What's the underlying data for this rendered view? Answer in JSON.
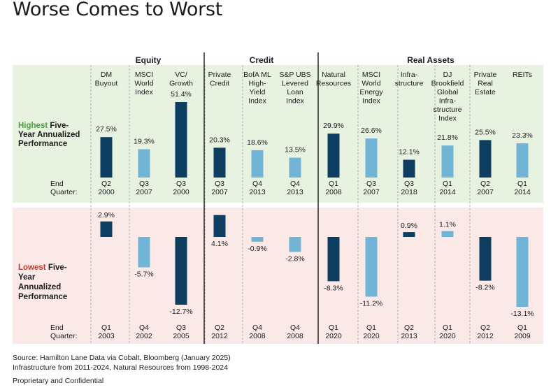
{
  "title": "Worse Comes to Worst",
  "groups": [
    "Equity",
    "Credit",
    "Real Assets"
  ],
  "strategies": [
    [
      "DM",
      "Buyout"
    ],
    [
      "MSCI",
      "World",
      "Index"
    ],
    [
      "VC/",
      "Growth"
    ],
    [
      "Private",
      "Credit"
    ],
    [
      "BofA ML",
      "High-",
      "Yield",
      "Index"
    ],
    [
      "S&P UBS",
      "Levered",
      "Loan",
      "Index"
    ],
    [
      "Natural",
      "Resources"
    ],
    [
      "MSCI",
      "World",
      "Energy",
      "Index"
    ],
    [
      "Infra-",
      "structure"
    ],
    [
      "DJ",
      "Brookfield",
      "Global",
      "Infra-",
      "structure",
      "Index"
    ],
    [
      "Private",
      "Real",
      "Estate"
    ],
    [
      "REITs"
    ]
  ],
  "highest_label": {
    "colored": "Highest",
    "rest": [
      " Five-",
      "Year Annualized",
      "Performance"
    ]
  },
  "lowest_label": {
    "colored": "Lowest",
    "rest": [
      " Five-",
      "Year",
      "Annualized",
      "Performance"
    ]
  },
  "end_quarter_label": [
    "End",
    "Quarter:"
  ],
  "colors": {
    "dark_bar": "#0d3d5f",
    "light_bar": "#72b4d6",
    "top_panel": "#e8f2e1",
    "bottom_panel": "#fbe9e8",
    "highest_word": "#4a9f3a",
    "lowest_word": "#c0392b"
  },
  "chart_data": {
    "type": "bar",
    "categories": [
      "DM Buyout",
      "MSCI World Index",
      "VC/ Growth",
      "Private Credit",
      "BofA ML High-Yield Index",
      "S&P UBS Levered Loan Index",
      "Natural Resources",
      "MSCI World Energy Index",
      "Infra-structure",
      "DJ Brookfield Global Infra-structure Index",
      "Private Real Estate",
      "REITs"
    ],
    "bar_shade": [
      "dark",
      "light",
      "dark",
      "dark",
      "light",
      "light",
      "dark",
      "light",
      "dark",
      "light",
      "dark",
      "light"
    ],
    "highest": {
      "values": [
        27.5,
        19.3,
        51.4,
        20.3,
        18.6,
        13.5,
        29.9,
        26.6,
        12.1,
        21.8,
        25.5,
        23.3
      ],
      "labels": [
        "27.5%",
        "19.3%",
        "51.4%",
        "20.3%",
        "18.6%",
        "13.5%",
        "29.9%",
        "26.6%",
        "12.1%",
        "21.8%",
        "25.5%",
        "23.3%"
      ],
      "quarters": [
        [
          "Q2",
          "2000"
        ],
        [
          "Q3",
          "2007"
        ],
        [
          "Q3",
          "2000"
        ],
        [
          "Q3",
          "2007"
        ],
        [
          "Q4",
          "2013"
        ],
        [
          "Q4",
          "2013"
        ],
        [
          "Q1",
          "2008"
        ],
        [
          "Q3",
          "2007"
        ],
        [
          "Q3",
          "2018"
        ],
        [
          "Q1",
          "2014"
        ],
        [
          "Q2",
          "2007"
        ],
        [
          "Q1",
          "2014"
        ]
      ]
    },
    "lowest": {
      "values": [
        2.9,
        -5.7,
        -12.7,
        4.1,
        -0.9,
        -2.8,
        -8.3,
        -11.2,
        0.9,
        1.1,
        -8.2,
        -13.1
      ],
      "labels": [
        "2.9%",
        "-5.7%",
        "-12.7%",
        "4.1%",
        "-0.9%",
        "-2.8%",
        "-8.3%",
        "-11.2%",
        "0.9%",
        "1.1%",
        "-8.2%",
        "-13.1%"
      ],
      "quarters": [
        [
          "Q1",
          "2003"
        ],
        [
          "Q4",
          "2002"
        ],
        [
          "Q3",
          "2005"
        ],
        [
          "Q2",
          "2012"
        ],
        [
          "Q4",
          "2008"
        ],
        [
          "Q4",
          "2008"
        ],
        [
          "Q1",
          "2020"
        ],
        [
          "Q1",
          "2020"
        ],
        [
          "Q2",
          "2013"
        ],
        [
          "Q1",
          "2020"
        ],
        [
          "Q2",
          "2012"
        ],
        [
          "Q1",
          "2009"
        ]
      ]
    }
  },
  "footnotes": [
    "Source: Hamilton Lane Data via Cobalt, Bloomberg (January 2025)",
    "Infrastructure from 2011-2024, Natural Resources from 1998-2024",
    "Proprietary and Confidential"
  ]
}
